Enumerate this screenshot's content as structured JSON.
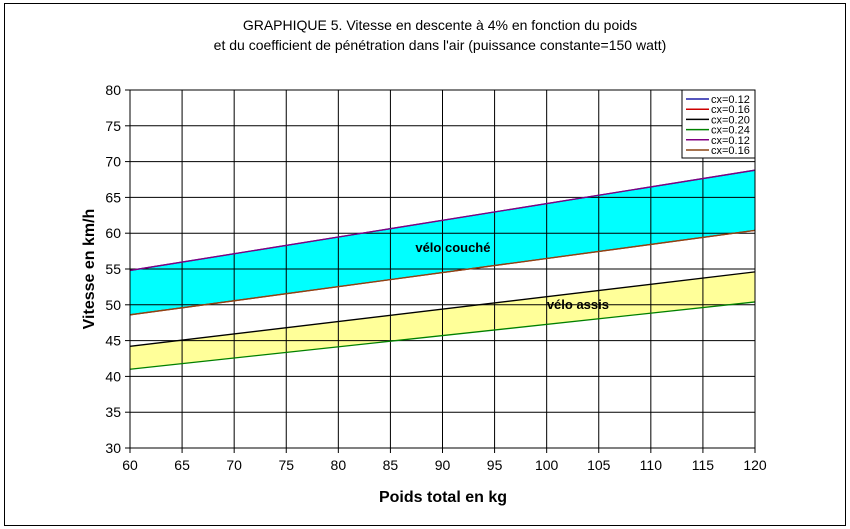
{
  "chart_data": {
    "type": "area",
    "title_line1": "GRAPHIQUE 5. Vitesse en descente à 4% en fonction du poids",
    "title_line2": "et du coefficient de pénétration dans l'air (puissance constante=150 watt)",
    "xlabel": "Poids total en kg",
    "ylabel": "Vitesse en km/h",
    "xlim": [
      60,
      120
    ],
    "ylim": [
      30,
      80
    ],
    "x_ticks": [
      "60",
      "65",
      "70",
      "75",
      "80",
      "85",
      "90",
      "95",
      "100",
      "105",
      "110",
      "115",
      "120"
    ],
    "y_ticks": [
      "30",
      "35",
      "40",
      "45",
      "50",
      "55",
      "60",
      "65",
      "70",
      "75",
      "80"
    ],
    "grid": true,
    "legend_position": "top-right",
    "x": [
      60,
      120
    ],
    "series": [
      {
        "name": "cx=0.12",
        "values": [
          54.8,
          68.8
        ],
        "color": "#1f1fa8"
      },
      {
        "name": "cx=0.16",
        "values": [
          48.6,
          60.4
        ],
        "color": "#cc0000"
      },
      {
        "name": "cx=0.20",
        "values": [
          44.2,
          54.6
        ],
        "color": "#000000"
      },
      {
        "name": "cx=0.24",
        "values": [
          41.0,
          50.4
        ],
        "color": "#008000"
      },
      {
        "name": "cx=0.12",
        "values": [
          54.8,
          68.8
        ],
        "color": "#800080"
      },
      {
        "name": "cx=0.16",
        "values": [
          48.6,
          60.4
        ],
        "color": "#8b4513"
      }
    ],
    "bands": [
      {
        "label": "vélo couché",
        "upper_series": 0,
        "lower_series": 1,
        "color": "#00ffff",
        "label_x": 91,
        "label_y": 57.4
      },
      {
        "label": "vélo assis",
        "upper_series": 2,
        "lower_series": 3,
        "color": "#ffff99",
        "label_x": 103,
        "label_y": 49.4
      }
    ]
  }
}
